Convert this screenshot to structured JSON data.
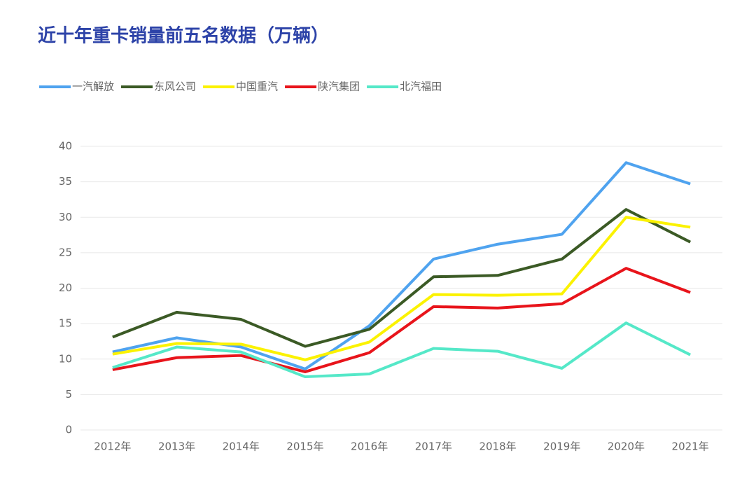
{
  "chart_data": {
    "type": "line",
    "title": "近十年重卡销量前五名数据（万辆）",
    "categories": [
      "2012年",
      "2013年",
      "2014年",
      "2015年",
      "2016年",
      "2017年",
      "2018年",
      "2019年",
      "2020年",
      "2021年"
    ],
    "series": [
      {
        "name": "一汽解放",
        "color": "#4fa3ef",
        "values": [
          11.0,
          13.0,
          11.7,
          8.6,
          14.7,
          24.1,
          26.2,
          27.6,
          37.7,
          34.7
        ]
      },
      {
        "name": "东风公司",
        "color": "#3b5a25",
        "values": [
          13.1,
          16.6,
          15.6,
          11.8,
          14.2,
          21.6,
          21.8,
          24.1,
          31.1,
          26.5
        ]
      },
      {
        "name": "中国重汽",
        "color": "#fbf200",
        "values": [
          10.7,
          12.2,
          12.1,
          9.9,
          12.4,
          19.1,
          19.0,
          19.2,
          30.0,
          28.6
        ]
      },
      {
        "name": "陕汽集团",
        "color": "#e8141b",
        "values": [
          8.5,
          10.2,
          10.5,
          8.2,
          10.9,
          17.4,
          17.2,
          17.8,
          22.8,
          19.4
        ]
      },
      {
        "name": "北汽福田",
        "color": "#55e8c8",
        "values": [
          8.8,
          11.7,
          11.0,
          7.5,
          7.9,
          11.5,
          11.1,
          8.7,
          15.1,
          10.6
        ]
      }
    ],
    "ylim": [
      0,
      40
    ],
    "yticks": [
      0,
      5,
      10,
      15,
      20,
      25,
      30,
      35,
      40
    ],
    "grid": true
  }
}
